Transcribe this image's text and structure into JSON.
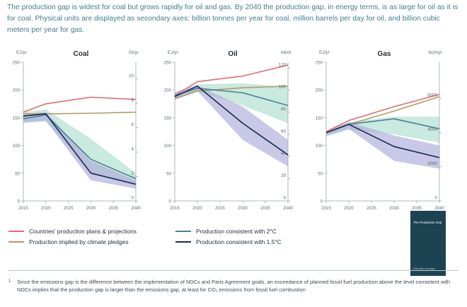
{
  "intro": "The production gap is widest for coal but grows rapidly for oil and gas. By 2040 the production gap, in energy terms, is as large for oil as it is for coal. Physical units are displayed as secondary axes: billion tonnes per year for coal, million barrels per day for oil, and billion cubic meters per year for gas.",
  "colors": {
    "plans": "#e06f6f",
    "pledges": "#b39a68",
    "c2": "#4b8199",
    "c15": "#19294f",
    "band2": "#a9dccb",
    "band15": "#aaa6d8"
  },
  "chart_data": [
    {
      "type": "line",
      "title": "Coal",
      "ylabel_left": "EJ/yr",
      "ylabel_right": "Gt/yr",
      "xlim": [
        2015,
        2040
      ],
      "ylim": [
        0,
        250
      ],
      "x_ticks": [
        2015,
        2020,
        2025,
        2030,
        2035,
        2040
      ],
      "y_ticks": [
        0,
        50,
        100,
        150,
        200,
        250
      ],
      "y2_ticks": [
        0,
        2,
        4,
        6,
        8,
        10
      ],
      "y2_scale": 22,
      "series": [
        {
          "key": "plans",
          "x": [
            2015,
            2020,
            2030,
            2040
          ],
          "y": [
            160,
            175,
            187,
            183
          ]
        },
        {
          "key": "pledges",
          "x": [
            2015,
            2020,
            2030,
            2040
          ],
          "y": [
            157,
            157,
            158,
            160
          ]
        },
        {
          "key": "c2",
          "x": [
            2015,
            2020,
            2030,
            2040
          ],
          "y": [
            148,
            155,
            75,
            40
          ]
        },
        {
          "key": "c15",
          "x": [
            2015,
            2020,
            2030,
            2040
          ],
          "y": [
            153,
            157,
            50,
            30
          ]
        }
      ],
      "bands": [
        {
          "key": "band2",
          "x": [
            2015,
            2020,
            2030,
            2040
          ],
          "lo": [
            140,
            143,
            50,
            28
          ],
          "hi": [
            160,
            165,
            112,
            50
          ]
        },
        {
          "key": "band15",
          "x": [
            2015,
            2020,
            2030,
            2040
          ],
          "lo": [
            142,
            145,
            37,
            22
          ],
          "hi": [
            157,
            160,
            72,
            37
          ]
        }
      ]
    },
    {
      "type": "line",
      "title": "Oil",
      "ylabel_left": "EJ/yr",
      "ylabel_right": "mb/d",
      "xlim": [
        2015,
        2040
      ],
      "ylim": [
        0,
        250
      ],
      "x_ticks": [
        2015,
        2020,
        2025,
        2030,
        2035,
        2040
      ],
      "y_ticks": [
        0,
        50,
        100,
        150,
        200,
        250
      ],
      "y2_ticks": [
        0,
        20,
        40,
        60,
        80,
        100,
        120
      ],
      "y2_scale": 2,
      "series": [
        {
          "key": "plans",
          "x": [
            2015,
            2020,
            2030,
            2040
          ],
          "y": [
            190,
            215,
            225,
            245
          ]
        },
        {
          "key": "pledges",
          "x": [
            2015,
            2020,
            2030,
            2040
          ],
          "y": [
            184,
            198,
            204,
            207
          ]
        },
        {
          "key": "c2",
          "x": [
            2015,
            2020,
            2030,
            2040
          ],
          "y": [
            190,
            203,
            195,
            172
          ]
        },
        {
          "key": "c15",
          "x": [
            2015,
            2020,
            2030,
            2040
          ],
          "y": [
            188,
            207,
            140,
            83
          ]
        }
      ],
      "bands": [
        {
          "key": "band2",
          "x": [
            2015,
            2020,
            2030,
            2040
          ],
          "lo": [
            185,
            198,
            172,
            140
          ],
          "hi": [
            196,
            210,
            212,
            205
          ]
        },
        {
          "key": "band15",
          "x": [
            2015,
            2020,
            2030,
            2040
          ],
          "lo": [
            183,
            198,
            110,
            62
          ],
          "hi": [
            196,
            208,
            170,
            110
          ]
        }
      ]
    },
    {
      "type": "line",
      "title": "Gas",
      "ylabel_left": "EJ/yr",
      "ylabel_right": "bcm/yr",
      "xlim": [
        2015,
        2040
      ],
      "ylim": [
        0,
        250
      ],
      "x_ticks": [
        2015,
        2020,
        2025,
        2030,
        2035,
        2040
      ],
      "y_ticks": [
        0,
        50,
        100,
        150,
        200,
        250
      ],
      "y2_ticks": [
        0,
        2000,
        4000,
        6000
      ],
      "y2_scale": 0.0308,
      "series": [
        {
          "key": "plans",
          "x": [
            2015,
            2020,
            2030,
            2040
          ],
          "y": [
            125,
            145,
            170,
            192
          ]
        },
        {
          "key": "pledges",
          "x": [
            2015,
            2020,
            2030,
            2040
          ],
          "y": [
            123,
            138,
            162,
            188
          ]
        },
        {
          "key": "c2",
          "x": [
            2015,
            2020,
            2030,
            2040
          ],
          "y": [
            123,
            138,
            148,
            130
          ]
        },
        {
          "key": "c15",
          "x": [
            2015,
            2020,
            2030,
            2040
          ],
          "y": [
            123,
            138,
            98,
            78
          ]
        }
      ],
      "bands": [
        {
          "key": "band2",
          "x": [
            2015,
            2020,
            2030,
            2040
          ],
          "lo": [
            116,
            128,
            120,
            105
          ],
          "hi": [
            126,
            142,
            152,
            152
          ]
        },
        {
          "key": "band15",
          "x": [
            2015,
            2020,
            2030,
            2040
          ],
          "lo": [
            118,
            130,
            72,
            58
          ],
          "hi": [
            126,
            142,
            118,
            100
          ]
        }
      ]
    }
  ],
  "legend": [
    {
      "key": "plans",
      "label": "Countries' production plans & projections"
    },
    {
      "key": "pledges",
      "label": "Production implied by climate pledges"
    },
    {
      "key": "c2",
      "label": "Production consistent with 2°C"
    },
    {
      "key": "c15",
      "label": "Production consistent with 1.5°C"
    }
  ],
  "cover": {
    "title": "The Production Gap",
    "subtitle": "Executive summary"
  },
  "footnote": {
    "mark": "1",
    "text": "Since the emissions gap is the difference between the implementation of NDCs and Paris Agreement goals, an exceedance of planned fossil fuel production above the level consistent with NDCs implies that the production gap is larger than the emissions gap, at least for CO₂ emissions from fossil fuel combustion"
  }
}
